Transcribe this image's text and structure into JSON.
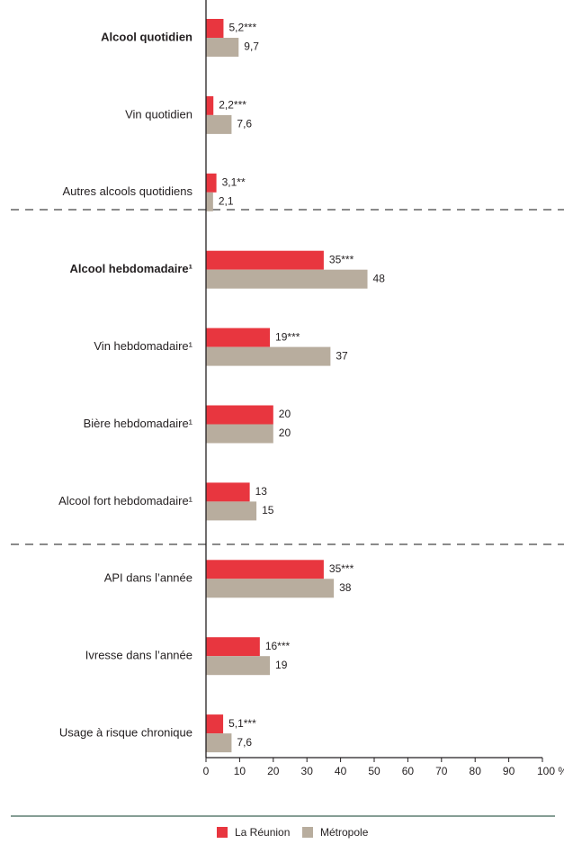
{
  "chart_data": {
    "type": "bar",
    "orientation": "horizontal",
    "categories": [
      "Alcool quotidien",
      "Vin quotidien",
      "Autres alcools quotidiens",
      "Alcool hebdomadaire¹",
      "Vin hebdomadaire¹",
      "Bière hebdomadaire¹",
      "Alcool fort hebdomadaire¹",
      "API dans l’année",
      "Ivresse dans l’année",
      "Usage à risque chronique"
    ],
    "series": [
      {
        "name": "La Réunion",
        "color": "#e8363f",
        "values": [
          5.2,
          2.2,
          3.1,
          35,
          19,
          20,
          13,
          35,
          16,
          5.1
        ],
        "value_labels": [
          "5,2***",
          "2,2***",
          "3,1**",
          "35***",
          "19***",
          "20",
          "13",
          "35***",
          "16***",
          "5,1***"
        ]
      },
      {
        "name": "Métropole",
        "color": "#b8ad9e",
        "values": [
          9.7,
          7.6,
          2.1,
          48,
          37,
          20,
          15,
          38,
          19,
          7.6
        ],
        "value_labels": [
          "9,7",
          "7,6",
          "2,1",
          "48",
          "37",
          "20",
          "15",
          "38",
          "19",
          "7,6"
        ]
      }
    ],
    "xlim": [
      0,
      100
    ],
    "xticks": [
      0,
      10,
      20,
      30,
      40,
      50,
      60,
      70,
      80,
      90,
      {
        "value": 100,
        "label": "100 %"
      }
    ],
    "legend": "bottom"
  }
}
